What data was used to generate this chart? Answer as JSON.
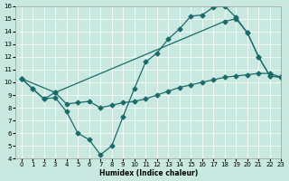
{
  "title": "",
  "xlabel": "Humidex (Indice chaleur)",
  "ylabel": "",
  "bg_color": "#c8e8e0",
  "line_color": "#1a6b6b",
  "xlim": [
    -0.5,
    23
  ],
  "ylim": [
    4,
    16
  ],
  "xticks": [
    0,
    1,
    2,
    3,
    4,
    5,
    6,
    7,
    8,
    9,
    10,
    11,
    12,
    13,
    14,
    15,
    16,
    17,
    18,
    19,
    20,
    21,
    22,
    23
  ],
  "yticks": [
    4,
    5,
    6,
    7,
    8,
    9,
    10,
    11,
    12,
    13,
    14,
    15,
    16
  ],
  "line1_x": [
    0,
    1,
    2,
    3,
    4,
    5,
    6,
    7,
    8,
    9,
    10,
    11,
    12,
    13,
    14,
    15,
    16,
    17,
    18,
    19,
    20,
    21,
    22,
    23
  ],
  "line1_y": [
    10.3,
    9.5,
    8.7,
    8.8,
    7.7,
    6.0,
    5.5,
    4.3,
    5.0,
    7.3,
    9.5,
    11.6,
    12.3,
    13.4,
    14.2,
    15.2,
    15.3,
    15.9,
    16.0,
    15.1,
    13.9,
    12.0,
    10.5,
    10.4
  ],
  "line2_x": [
    0,
    1,
    2,
    3,
    18,
    19,
    20,
    21,
    22,
    23
  ],
  "line2_y": [
    10.3,
    9.5,
    8.7,
    9.2,
    14.8,
    15.0,
    13.9,
    12.0,
    10.5,
    10.4
  ],
  "line3_x": [
    0,
    3,
    4,
    5,
    6,
    7,
    8,
    9,
    10,
    11,
    12,
    13,
    14,
    15,
    16,
    17,
    18,
    19,
    20,
    21,
    22,
    23
  ],
  "line3_y": [
    10.3,
    9.2,
    8.3,
    8.4,
    8.5,
    8.0,
    8.2,
    8.4,
    8.5,
    8.7,
    9.0,
    9.3,
    9.6,
    9.8,
    10.0,
    10.2,
    10.4,
    10.5,
    10.6,
    10.7,
    10.7,
    10.4
  ]
}
